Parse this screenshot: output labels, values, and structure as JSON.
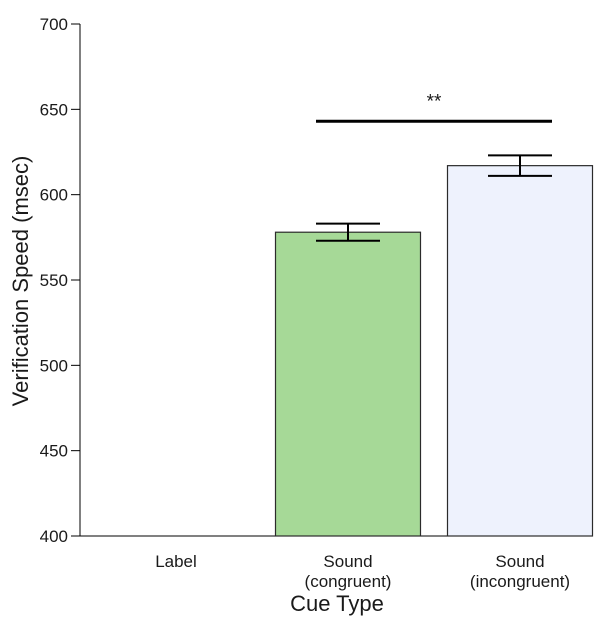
{
  "chart_data": {
    "type": "bar",
    "xlabel": "Cue Type",
    "ylabel": "Verification Speed (msec)",
    "ylim": [
      400,
      700
    ],
    "yticks": [
      400,
      450,
      500,
      550,
      600,
      650,
      700
    ],
    "grid": false,
    "categories": [
      {
        "lines": [
          "Label"
        ]
      },
      {
        "lines": [
          "Sound",
          "(congruent)"
        ]
      },
      {
        "lines": [
          "Sound",
          "(incongruent)"
        ]
      }
    ],
    "values": [
      null,
      578,
      617
    ],
    "error": [
      null,
      5,
      6
    ],
    "bar_colors": [
      "#ffffff",
      "#a6d997",
      "#eef2fd"
    ],
    "annotation": {
      "text": "**",
      "between": [
        1,
        2
      ],
      "y": 643
    }
  }
}
